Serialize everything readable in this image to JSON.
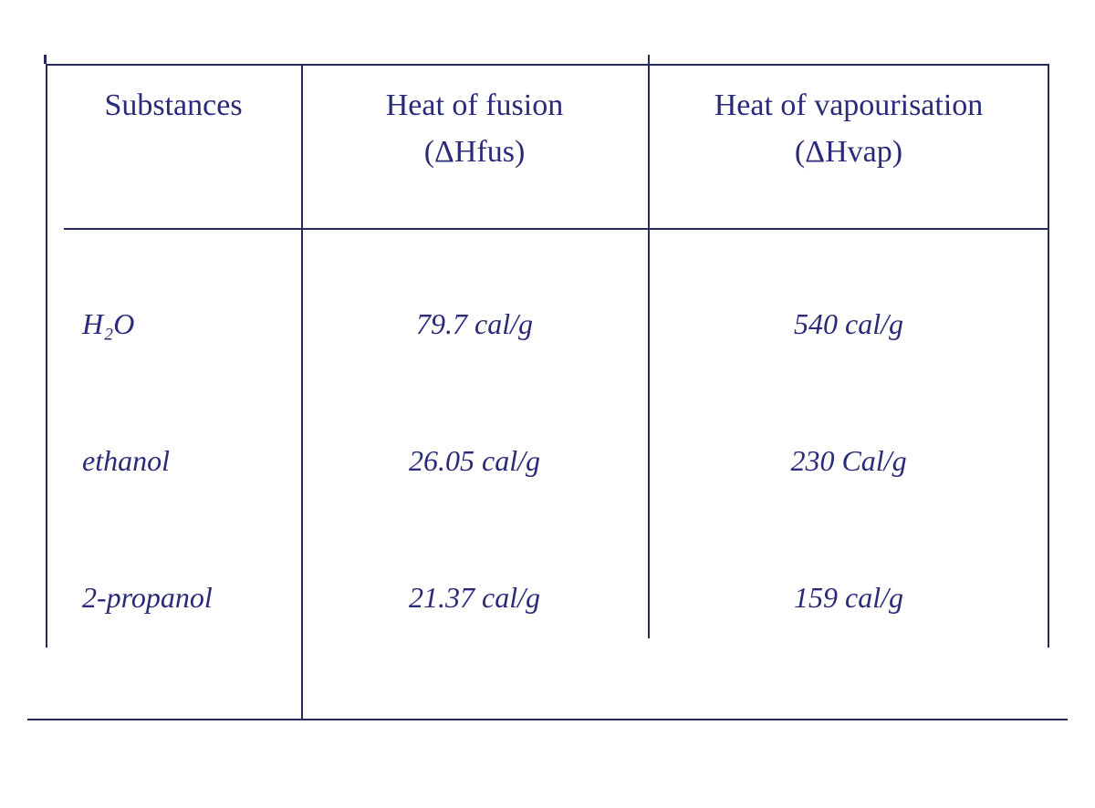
{
  "table": {
    "type": "table",
    "ink_color": "#2a2a7a",
    "background_color": "#ffffff",
    "border_color": "#2a2a5a",
    "font_family": "cursive",
    "header_fontsize": 34,
    "cell_fontsize": 32,
    "columns": {
      "substances": {
        "label": "Substances",
        "sublabel": ""
      },
      "heat_fusion": {
        "label": "Heat of fusion",
        "sublabel": "(ΔHfus)"
      },
      "heat_vaporisation": {
        "label": "Heat of vapourisation",
        "sublabel": "(ΔHvap)"
      }
    },
    "rows": [
      {
        "substance": "H₂O",
        "fusion": "79.7 cal/g",
        "vaporisation": "540 cal/g"
      },
      {
        "substance": "ethanol",
        "fusion": "26.05 cal/g",
        "vaporisation": "230 Cal/g"
      },
      {
        "substance": "2-propanol",
        "fusion": "21.37 cal/g",
        "vaporisation": "159 cal/g"
      }
    ]
  }
}
